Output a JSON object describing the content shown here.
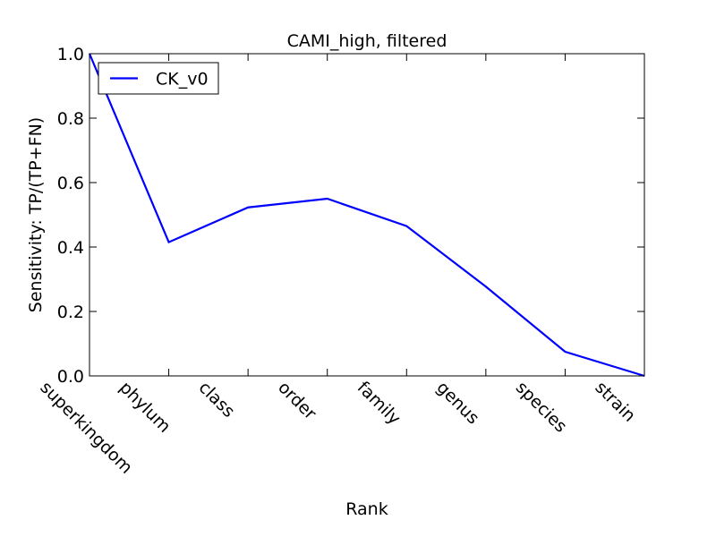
{
  "chart_data": {
    "type": "line",
    "title": "CAMI_high, filtered",
    "xlabel": "Rank",
    "ylabel": "Sensitivity: TP/(TP+FN)",
    "categories": [
      "superkingdom",
      "phylum",
      "class",
      "order",
      "family",
      "genus",
      "species",
      "strain"
    ],
    "series": [
      {
        "name": "CK_v0",
        "color": "#0000ff",
        "values": [
          1.0,
          0.415,
          0.523,
          0.55,
          0.465,
          0.277,
          0.075,
          0.0
        ]
      }
    ],
    "ylim": [
      0.0,
      1.0
    ],
    "yticks": [
      "0.0",
      "0.2",
      "0.4",
      "0.6",
      "0.8",
      "1.0"
    ],
    "grid": false,
    "legend_position": "upper-left"
  }
}
